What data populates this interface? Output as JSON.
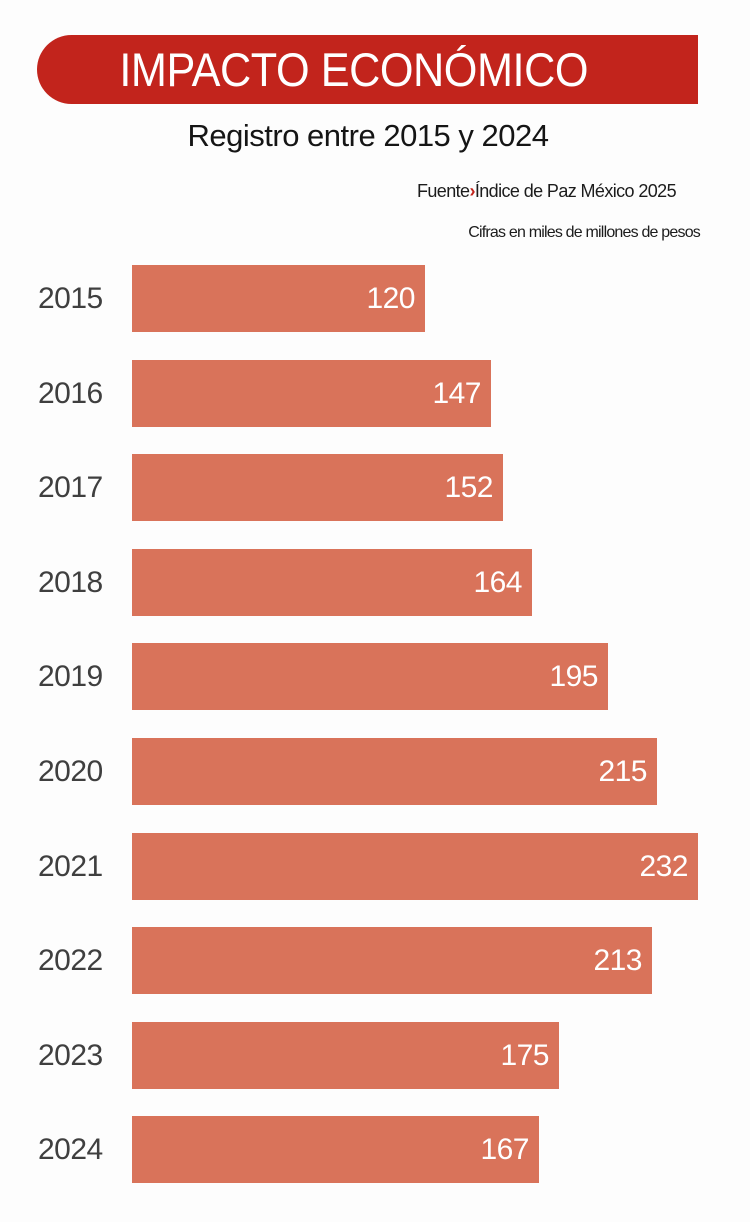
{
  "header": {
    "title": "IMPACTO ECONÓMICO",
    "subtitle": "Registro entre 2015 y 2024",
    "source_label": "Fuente",
    "source_separator": "›",
    "source_value": "Índice de Paz México 2025",
    "units": "Cifras en miles de millones de pesos"
  },
  "colors": {
    "banner": "#C2241C",
    "bar": "#D9735A",
    "separator": "#C2241C"
  },
  "chart_data": {
    "type": "bar",
    "orientation": "horizontal",
    "title": "IMPACTO ECONÓMICO",
    "subtitle": "Registro entre 2015 y 2024",
    "source": "Fuente›Índice de Paz México 2025",
    "units": "Cifras en miles de millones de pesos",
    "xlabel": "",
    "ylabel": "",
    "grid": false,
    "legend": null,
    "categories": [
      "2015",
      "2016",
      "2017",
      "2018",
      "2019",
      "2020",
      "2021",
      "2022",
      "2023",
      "2024"
    ],
    "values": [
      120,
      147,
      152,
      164,
      195,
      215,
      232,
      213,
      175,
      167
    ],
    "xlim": [
      0,
      232
    ]
  }
}
